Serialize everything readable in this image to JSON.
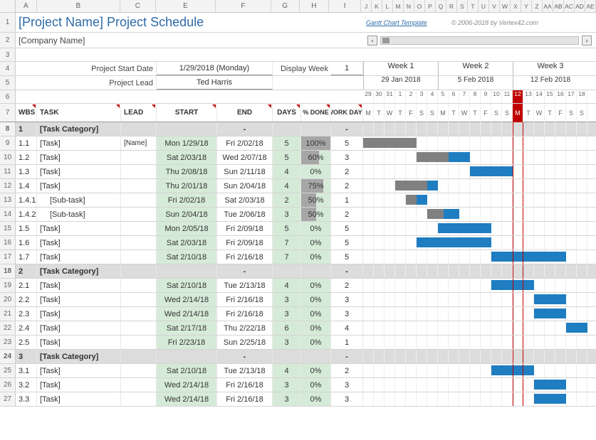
{
  "title": "[Project Name] Project Schedule",
  "company": "[Company Name]",
  "template_link": "Gantt Chart Template",
  "copyright": "© 2006-2018 by Vertex42.com",
  "form": {
    "start_date_label": "Project Start Date",
    "start_date_value": "1/29/2018 (Monday)",
    "lead_label": "Project Lead",
    "lead_value": "Ted Harris",
    "display_week_label": "Display Week",
    "display_week_value": "1"
  },
  "col_letters_left": [
    "A",
    "B",
    "C",
    "E",
    "F",
    "G",
    "H",
    "I"
  ],
  "col_letters_right": [
    "J",
    "K",
    "L",
    "M",
    "N",
    "O",
    "P",
    "Q",
    "R",
    "S",
    "T",
    "U",
    "V",
    "W",
    "X",
    "Y",
    "Z",
    "AA",
    "AB",
    "AC",
    "AD",
    "AE"
  ],
  "col_widths": {
    "A": 30,
    "B": 118,
    "C": 50,
    "E": 85,
    "F": 78,
    "G": 40,
    "H": 42,
    "I": 45
  },
  "header_cols": {
    "wbs": "WBS",
    "task": "TASK",
    "lead": "LEAD",
    "start": "START",
    "end": "END",
    "days": "DAYS",
    "pct": "% DONE",
    "work": "WORK DAYS"
  },
  "weeks": [
    {
      "label": "Week 1",
      "date": "29 Jan 2018"
    },
    {
      "label": "Week 2",
      "date": "5 Feb 2018"
    },
    {
      "label": "Week 3",
      "date": "12 Feb 2018"
    }
  ],
  "day_nums": [
    "29",
    "30",
    "31",
    "1",
    "2",
    "3",
    "4",
    "5",
    "6",
    "7",
    "8",
    "9",
    "10",
    "11",
    "12",
    "13",
    "14",
    "15",
    "16",
    "17",
    "18"
  ],
  "day_letters": [
    "M",
    "T",
    "W",
    "T",
    "F",
    "S",
    "S",
    "M",
    "T",
    "W",
    "T",
    "F",
    "S",
    "S",
    "M",
    "T",
    "W",
    "T",
    "F",
    "S",
    "S"
  ],
  "today_index": 14,
  "day_width": 15,
  "colors": {
    "blue": "#1f7dc1",
    "gray": "#808080",
    "green": "#d6ead8",
    "today": "#c00000"
  },
  "rows": [
    {
      "n": 8,
      "type": "cat",
      "wbs": "1",
      "task": "[Task Category]",
      "end": "-",
      "work": "-"
    },
    {
      "n": 9,
      "type": "task",
      "wbs": "1.1",
      "task": "[Task]",
      "lead": "[Name]",
      "start": "Mon 1/29/18",
      "end": "Fri 2/02/18",
      "days": "5",
      "pct": 100,
      "work": "5",
      "bars": [
        {
          "start": 0,
          "len": 5,
          "color": "gray"
        }
      ]
    },
    {
      "n": 10,
      "type": "task",
      "wbs": "1.2",
      "task": "[Task]",
      "start": "Sat 2/03/18",
      "end": "Wed 2/07/18",
      "days": "5",
      "pct": 60,
      "work": "3",
      "bars": [
        {
          "start": 5,
          "len": 3,
          "color": "gray"
        },
        {
          "start": 8,
          "len": 2,
          "color": "blue"
        }
      ]
    },
    {
      "n": 11,
      "type": "task",
      "wbs": "1.3",
      "task": "[Task]",
      "start": "Thu 2/08/18",
      "end": "Sun 2/11/18",
      "days": "4",
      "pct": 0,
      "work": "2",
      "bars": [
        {
          "start": 10,
          "len": 4,
          "color": "blue"
        }
      ]
    },
    {
      "n": 12,
      "type": "task",
      "wbs": "1.4",
      "task": "[Task]",
      "start": "Thu 2/01/18",
      "end": "Sun 2/04/18",
      "days": "4",
      "pct": 75,
      "work": "2",
      "bars": [
        {
          "start": 3,
          "len": 3,
          "color": "gray"
        },
        {
          "start": 6,
          "len": 1,
          "color": "blue"
        }
      ]
    },
    {
      "n": 13,
      "type": "task",
      "wbs": "1.4.1",
      "task": "[Sub-task]",
      "indent": 1,
      "start": "Fri 2/02/18",
      "end": "Sat 2/03/18",
      "days": "2",
      "pct": 50,
      "work": "1",
      "bars": [
        {
          "start": 4,
          "len": 1,
          "color": "gray"
        },
        {
          "start": 5,
          "len": 1,
          "color": "blue"
        }
      ]
    },
    {
      "n": 14,
      "type": "task",
      "wbs": "1.4.2",
      "task": "[Sub-task]",
      "indent": 1,
      "start": "Sun 2/04/18",
      "end": "Tue 2/06/18",
      "days": "3",
      "pct": 50,
      "work": "2",
      "bars": [
        {
          "start": 6,
          "len": 1.5,
          "color": "gray"
        },
        {
          "start": 7.5,
          "len": 1.5,
          "color": "blue"
        }
      ]
    },
    {
      "n": 15,
      "type": "task",
      "wbs": "1.5",
      "task": "[Task]",
      "start": "Mon 2/05/18",
      "end": "Fri 2/09/18",
      "days": "5",
      "pct": 0,
      "work": "5",
      "bars": [
        {
          "start": 7,
          "len": 5,
          "color": "blue"
        }
      ]
    },
    {
      "n": 16,
      "type": "task",
      "wbs": "1.6",
      "task": "[Task]",
      "start": "Sat 2/03/18",
      "end": "Fri 2/09/18",
      "days": "7",
      "pct": 0,
      "work": "5",
      "bars": [
        {
          "start": 5,
          "len": 7,
          "color": "blue"
        }
      ]
    },
    {
      "n": 17,
      "type": "task",
      "wbs": "1.7",
      "task": "[Task]",
      "start": "Sat 2/10/18",
      "end": "Fri 2/16/18",
      "days": "7",
      "pct": 0,
      "work": "5",
      "bars": [
        {
          "start": 12,
          "len": 7,
          "color": "blue"
        }
      ]
    },
    {
      "n": 18,
      "type": "cat",
      "wbs": "2",
      "task": "[Task Category]",
      "end": "-",
      "work": "-"
    },
    {
      "n": 19,
      "type": "task",
      "wbs": "2.1",
      "task": "[Task]",
      "start": "Sat 2/10/18",
      "end": "Tue 2/13/18",
      "days": "4",
      "pct": 0,
      "work": "2",
      "bars": [
        {
          "start": 12,
          "len": 4,
          "color": "blue"
        }
      ]
    },
    {
      "n": 20,
      "type": "task",
      "wbs": "2.2",
      "task": "[Task]",
      "start": "Wed 2/14/18",
      "end": "Fri 2/16/18",
      "days": "3",
      "pct": 0,
      "work": "3",
      "bars": [
        {
          "start": 16,
          "len": 3,
          "color": "blue"
        }
      ]
    },
    {
      "n": 21,
      "type": "task",
      "wbs": "2.3",
      "task": "[Task]",
      "start": "Wed 2/14/18",
      "end": "Fri 2/16/18",
      "days": "3",
      "pct": 0,
      "work": "3",
      "bars": [
        {
          "start": 16,
          "len": 3,
          "color": "blue"
        }
      ]
    },
    {
      "n": 22,
      "type": "task",
      "wbs": "2.4",
      "task": "[Task]",
      "start": "Sat 2/17/18",
      "end": "Thu 2/22/18",
      "days": "6",
      "pct": 0,
      "work": "4",
      "bars": [
        {
          "start": 19,
          "len": 2,
          "color": "blue"
        }
      ]
    },
    {
      "n": 23,
      "type": "task",
      "wbs": "2.5",
      "task": "[Task]",
      "start": "Fri 2/23/18",
      "end": "Sun 2/25/18",
      "days": "3",
      "pct": 0,
      "work": "1",
      "bars": []
    },
    {
      "n": 24,
      "type": "cat",
      "wbs": "3",
      "task": "[Task Category]",
      "end": "-",
      "work": "-"
    },
    {
      "n": 25,
      "type": "task",
      "wbs": "3.1",
      "task": "[Task]",
      "start": "Sat 2/10/18",
      "end": "Tue 2/13/18",
      "days": "4",
      "pct": 0,
      "work": "2",
      "bars": [
        {
          "start": 12,
          "len": 4,
          "color": "blue"
        }
      ]
    },
    {
      "n": 26,
      "type": "task",
      "wbs": "3.2",
      "task": "[Task]",
      "start": "Wed 2/14/18",
      "end": "Fri 2/16/18",
      "days": "3",
      "pct": 0,
      "work": "3",
      "bars": [
        {
          "start": 16,
          "len": 3,
          "color": "blue"
        }
      ]
    },
    {
      "n": 27,
      "type": "task",
      "wbs": "3.3",
      "task": "[Task]",
      "start": "Wed 2/14/18",
      "end": "Fri 2/16/18",
      "days": "3",
      "pct": 0,
      "work": "3",
      "bars": [
        {
          "start": 16,
          "len": 3,
          "color": "blue"
        }
      ]
    }
  ]
}
